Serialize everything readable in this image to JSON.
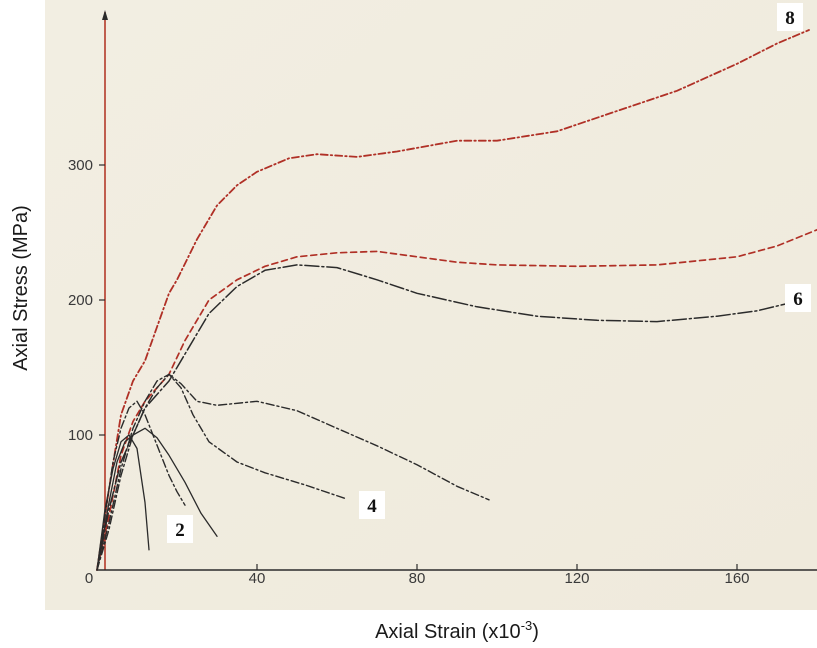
{
  "chart_data": {
    "type": "line",
    "xlabel": "Axial Strain (x10",
    "xlabel_exponent": "-3",
    "xlabel_close": ")",
    "ylabel": "Axial Stress (MPa)",
    "xlim": [
      0,
      180
    ],
    "ylim": [
      0,
      400
    ],
    "x_ticks": [
      0,
      40,
      80,
      120,
      160
    ],
    "y_ticks": [
      100,
      200,
      300
    ],
    "grid": false,
    "colors": {
      "photo_bg": "#efeadc",
      "axis": "#b43a2a",
      "ink": "#2b2b2b",
      "red_ink": "#b03026"
    },
    "series": [
      {
        "name": "8",
        "style": "red-dash-dot",
        "x": [
          0,
          3,
          6,
          9,
          12,
          15,
          18,
          20,
          25,
          30,
          35,
          40,
          48,
          55,
          65,
          75,
          90,
          100,
          115,
          130,
          145,
          160,
          170,
          178
        ],
        "y": [
          0,
          60,
          115,
          140,
          155,
          180,
          205,
          215,
          245,
          270,
          285,
          295,
          305,
          308,
          306,
          310,
          318,
          318,
          325,
          340,
          355,
          375,
          390,
          400
        ]
      },
      {
        "name": "",
        "style": "red-dash",
        "x": [
          0,
          3,
          6,
          9,
          12,
          15,
          18,
          22,
          28,
          35,
          42,
          50,
          60,
          70,
          80,
          90,
          100,
          120,
          140,
          160,
          170,
          180
        ],
        "y": [
          0,
          40,
          85,
          110,
          125,
          135,
          145,
          170,
          200,
          215,
          225,
          232,
          235,
          236,
          232,
          228,
          226,
          225,
          226,
          232,
          240,
          252
        ]
      },
      {
        "name": "6",
        "style": "black-long-dash",
        "x": [
          0,
          3,
          6,
          9,
          12,
          15,
          18,
          22,
          28,
          35,
          42,
          50,
          60,
          70,
          80,
          95,
          110,
          125,
          140,
          155,
          165,
          172
        ],
        "y": [
          0,
          45,
          80,
          100,
          120,
          130,
          140,
          160,
          190,
          210,
          222,
          226,
          224,
          215,
          205,
          195,
          188,
          185,
          184,
          188,
          192,
          197
        ]
      },
      {
        "name": "4",
        "style": "black-dash-dot",
        "x": [
          0,
          3,
          6,
          9,
          12,
          15,
          18,
          21,
          25,
          30,
          40,
          50,
          60,
          70,
          80,
          90,
          98
        ],
        "y": [
          0,
          30,
          70,
          100,
          120,
          135,
          145,
          138,
          125,
          122,
          125,
          118,
          105,
          92,
          78,
          62,
          52
        ]
      },
      {
        "name": "",
        "style": "black-dash-dot",
        "x": [
          0,
          3,
          6,
          9,
          12,
          15,
          18,
          21,
          24,
          28,
          35,
          42,
          52,
          62
        ],
        "y": [
          0,
          35,
          75,
          105,
          125,
          140,
          145,
          135,
          115,
          95,
          80,
          72,
          63,
          53
        ]
      },
      {
        "name": "2",
        "style": "black-solid",
        "x": [
          0,
          3,
          5,
          7,
          9,
          12,
          15,
          18,
          22,
          26,
          30
        ],
        "y": [
          0,
          50,
          80,
          95,
          100,
          105,
          98,
          85,
          65,
          42,
          25
        ]
      },
      {
        "name": "",
        "style": "black-dash-dot",
        "x": [
          0,
          2,
          4,
          6,
          8,
          10,
          12,
          14,
          16,
          18,
          20,
          22
        ],
        "y": [
          0,
          40,
          80,
          105,
          120,
          125,
          115,
          100,
          85,
          70,
          58,
          48
        ]
      },
      {
        "name": "",
        "style": "black-solid",
        "x": [
          0,
          2,
          4,
          6,
          8,
          10,
          12,
          13
        ],
        "y": [
          0,
          45,
          75,
          95,
          100,
          90,
          50,
          15
        ]
      }
    ]
  }
}
